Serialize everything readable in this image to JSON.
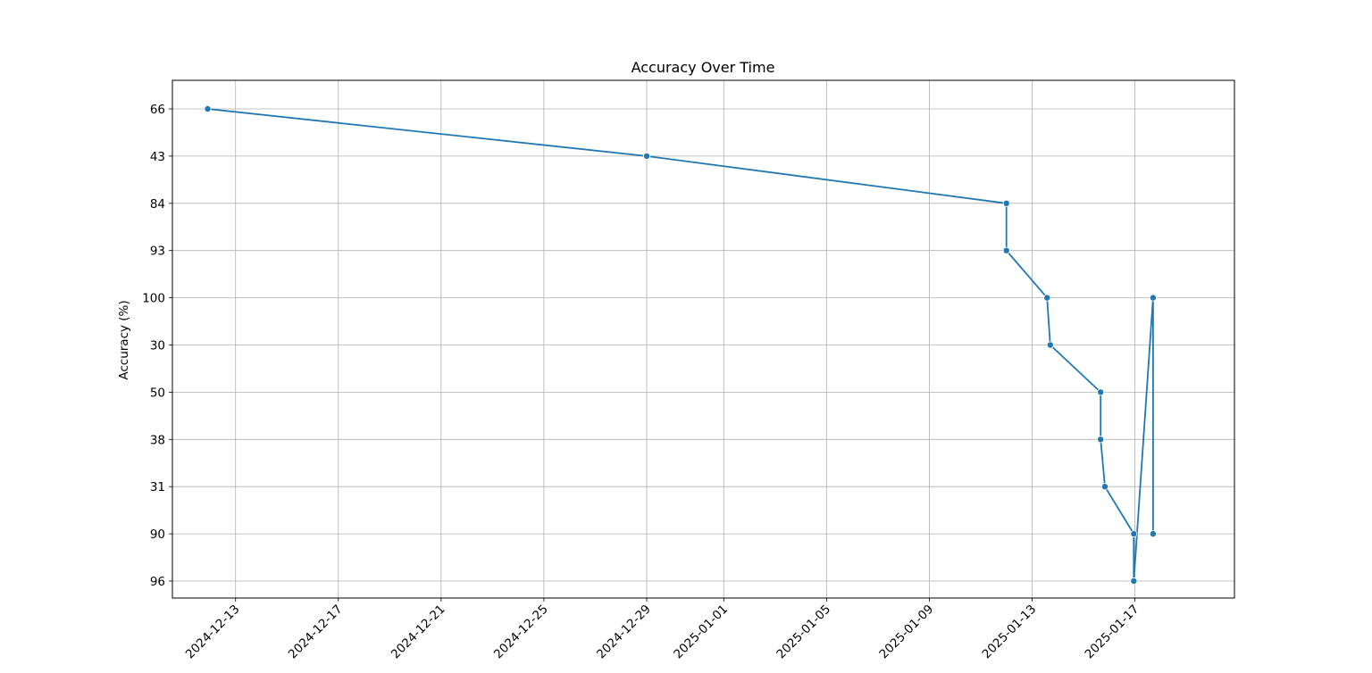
{
  "chart_data": {
    "type": "line",
    "title": "Accuracy Over Time",
    "xlabel": "",
    "ylabel": "Accuracy (%)",
    "grid": true,
    "y_categories": [
      "66",
      "43",
      "84",
      "93",
      "100",
      "30",
      "50",
      "38",
      "31",
      "90",
      "96"
    ],
    "x_ticks": [
      "2024-12-13",
      "2024-12-17",
      "2024-12-21",
      "2024-12-25",
      "2024-12-29",
      "2025-01-01",
      "2025-01-05",
      "2025-01-09",
      "2025-01-13",
      "2025-01-17"
    ],
    "xlim": [
      "2024-12-10T13:00",
      "2025-01-20T21:00"
    ],
    "series": [
      {
        "color": "#1f77b4",
        "marker": "circle",
        "points": [
          {
            "x": "2024-12-11T22:00",
            "y": "66"
          },
          {
            "x": "2024-12-29T00:00",
            "y": "43"
          },
          {
            "x": "2025-01-12T00:00",
            "y": "84"
          },
          {
            "x": "2025-01-12T00:00",
            "y": "93"
          },
          {
            "x": "2025-01-13T14:00",
            "y": "100"
          },
          {
            "x": "2025-01-13T17:00",
            "y": "30"
          },
          {
            "x": "2025-01-15T16:00",
            "y": "50"
          },
          {
            "x": "2025-01-15T16:00",
            "y": "38"
          },
          {
            "x": "2025-01-15T20:00",
            "y": "31"
          },
          {
            "x": "2025-01-16T23:00",
            "y": "90"
          },
          {
            "x": "2025-01-16T23:00",
            "y": "96"
          },
          {
            "x": "2025-01-17T17:00",
            "y": "100"
          },
          {
            "x": "2025-01-17T17:00",
            "y": "90"
          }
        ]
      }
    ]
  }
}
